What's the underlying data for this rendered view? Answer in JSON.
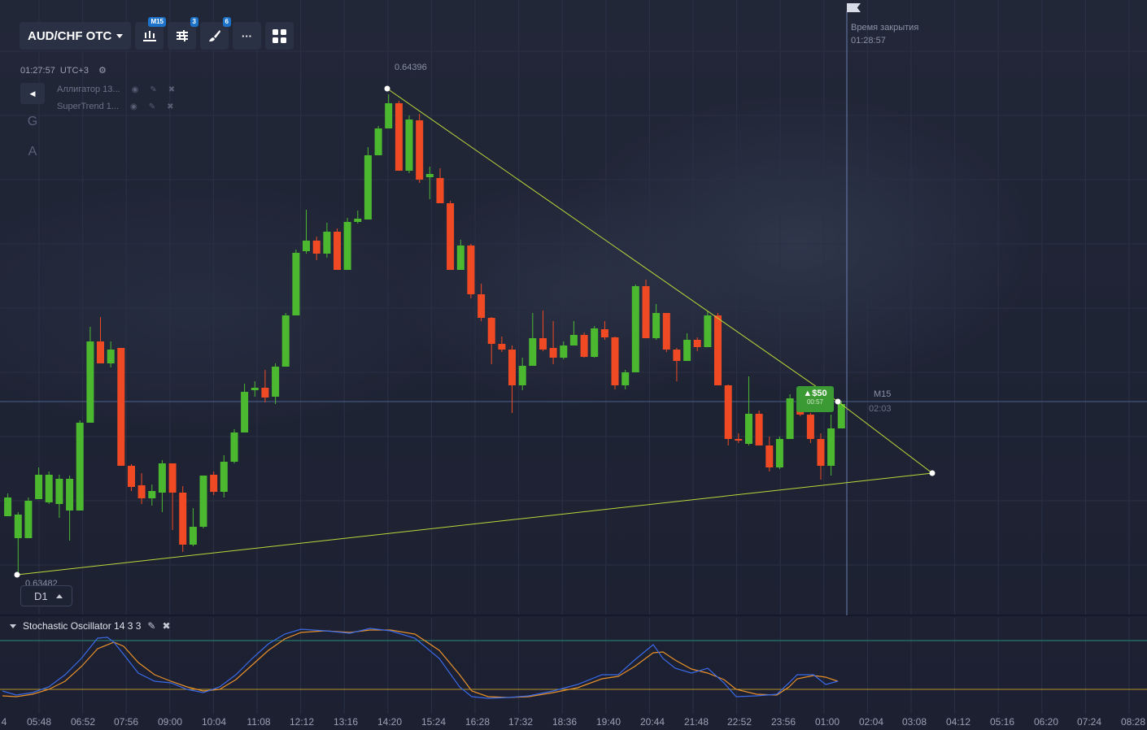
{
  "toolbar": {
    "pair_label": "AUD/CHF OTC",
    "timeframe_badge": "M15",
    "settings_badge": "3",
    "drawing_badge": "6",
    "more_label": "···"
  },
  "clock": {
    "time": "01:27:57",
    "timezone": "UTC+3"
  },
  "indicators": [
    {
      "label": "Аллигатор 13..."
    },
    {
      "label": "SuperTrend 1..."
    }
  ],
  "side_tools": {
    "g_label": "G",
    "a_label": "A"
  },
  "price_labels": {
    "high": "0.64396",
    "low": "0.63482"
  },
  "timeframe_button": {
    "label": "D1"
  },
  "expiry": {
    "title": "Время закрытия",
    "time": "01:28:57"
  },
  "current_marker": {
    "timeframe": "M15",
    "countdown": "02:03"
  },
  "trade": {
    "amount": "▲$50",
    "timer": "00:57"
  },
  "stochastic": {
    "label": "Stochastic Oscillator 14 3 3"
  },
  "x_axis": [
    "4",
    "05:48",
    "06:52",
    "07:56",
    "09:00",
    "10:04",
    "11:08",
    "12:12",
    "13:16",
    "14:20",
    "15:24",
    "16:28",
    "17:32",
    "18:36",
    "19:40",
    "20:44",
    "21:48",
    "22:52",
    "23:56",
    "01:00",
    "02:04",
    "03:08",
    "04:12",
    "05:16",
    "06:20",
    "07:24",
    "08:28"
  ],
  "colors": {
    "bull": "#4cb830",
    "bear": "#f04a24",
    "trendline": "#b9d93a",
    "stoch_k": "#3a6ae8",
    "stoch_d": "#e8902a"
  },
  "chart_data": {
    "type": "candlestick",
    "candles": [
      [
        9.6,
        635,
        612,
        635,
        607
      ],
      [
        22.3,
        662,
        633,
        706,
        630
      ],
      [
        34.9,
        662,
        616,
        662,
        612
      ],
      [
        47.6,
        614,
        584,
        614,
        575
      ],
      [
        60.2,
        618,
        584,
        620,
        580
      ],
      [
        72.9,
        620,
        589,
        637,
        584
      ],
      [
        85.6,
        628,
        589,
        665,
        585
      ],
      [
        98.2,
        628,
        520,
        628,
        517
      ],
      [
        110.9,
        520,
        420,
        520,
        402
      ],
      [
        123.5,
        420,
        447,
        447,
        390
      ],
      [
        136.2,
        447,
        430,
        452,
        420
      ],
      [
        148.8,
        428,
        573,
        573,
        428
      ],
      [
        161.5,
        573,
        599,
        604,
        571
      ],
      [
        174.1,
        597,
        613,
        620,
        582
      ],
      [
        186.8,
        613,
        604,
        622,
        596
      ],
      [
        199.4,
        606,
        570,
        630,
        566
      ],
      [
        212.1,
        570,
        606,
        652,
        570
      ],
      [
        224.7,
        606,
        670,
        679,
        598
      ],
      [
        237.4,
        670,
        648,
        672,
        625
      ],
      [
        250.0,
        648,
        585,
        650,
        585
      ],
      [
        262.7,
        584,
        605,
        609,
        580
      ],
      [
        275.3,
        605,
        568,
        612,
        560
      ],
      [
        288.0,
        568,
        532,
        570,
        528
      ],
      [
        300.6,
        532,
        482,
        532,
        472
      ],
      [
        313.3,
        480,
        477,
        488,
        469
      ],
      [
        325.9,
        477,
        489,
        495,
        455
      ],
      [
        338.6,
        488,
        451,
        497,
        447
      ],
      [
        351.2,
        451,
        388,
        451,
        385
      ],
      [
        363.9,
        388,
        311,
        388,
        307
      ],
      [
        376.5,
        309,
        296,
        312,
        258
      ],
      [
        389.2,
        296,
        312,
        320,
        291
      ],
      [
        401.9,
        312,
        285,
        317,
        274
      ],
      [
        414.5,
        285,
        332,
        332,
        281
      ],
      [
        427.1,
        332,
        273,
        332,
        268
      ],
      [
        439.8,
        273,
        269,
        275,
        259
      ],
      [
        452.4,
        270,
        191,
        270,
        181
      ],
      [
        465.1,
        191,
        158,
        191,
        155
      ],
      [
        477.7,
        158,
        127,
        158,
        116
      ],
      [
        490.4,
        127,
        210,
        210,
        124
      ],
      [
        503.0,
        210,
        147,
        213,
        142
      ],
      [
        515.7,
        148,
        221,
        225,
        140
      ],
      [
        528.3,
        218,
        214,
        245,
        205
      ],
      [
        541.0,
        219,
        250,
        250,
        207
      ],
      [
        553.6,
        250,
        332,
        332,
        247
      ],
      [
        566.3,
        332,
        302,
        332,
        295
      ],
      [
        578.9,
        302,
        362,
        367,
        300
      ],
      [
        591.6,
        362,
        391,
        395,
        349
      ],
      [
        604.2,
        391,
        423,
        448,
        390
      ],
      [
        616.9,
        423,
        430,
        433,
        414
      ],
      [
        629.5,
        430,
        474,
        508,
        425
      ],
      [
        642.2,
        474,
        450,
        480,
        440
      ],
      [
        654.8,
        450,
        416,
        450,
        385
      ],
      [
        667.5,
        416,
        430,
        432,
        382
      ],
      [
        680.1,
        428,
        440,
        448,
        395
      ],
      [
        692.8,
        440,
        425,
        442,
        420
      ],
      [
        705.4,
        425,
        412,
        425,
        395
      ],
      [
        718.1,
        412,
        439,
        440,
        409
      ],
      [
        730.7,
        439,
        404,
        440,
        401
      ],
      [
        743.4,
        405,
        415,
        418,
        395
      ],
      [
        756.0,
        415,
        474,
        479,
        414
      ],
      [
        768.7,
        474,
        458,
        479,
        455
      ],
      [
        781.3,
        458,
        352,
        458,
        350
      ],
      [
        794.0,
        352,
        416,
        416,
        344
      ],
      [
        806.6,
        416,
        385,
        418,
        374
      ],
      [
        819.3,
        385,
        430,
        433,
        385
      ],
      [
        831.9,
        430,
        444,
        469,
        428
      ],
      [
        844.6,
        444,
        418,
        444,
        410
      ],
      [
        857.2,
        418,
        427,
        432,
        415
      ],
      [
        869.9,
        427,
        388,
        427,
        383
      ],
      [
        882.5,
        388,
        474,
        474,
        385
      ],
      [
        895.2,
        474,
        540,
        548,
        473
      ],
      [
        907.8,
        540,
        541,
        545,
        533
      ],
      [
        920.5,
        546,
        509,
        548,
        463
      ],
      [
        933.1,
        509,
        548,
        548,
        505
      ],
      [
        945.8,
        548,
        575,
        580,
        537
      ],
      [
        958.4,
        575,
        540,
        577,
        537
      ],
      [
        971.1,
        540,
        490,
        540,
        485
      ],
      [
        983.7,
        490,
        510,
        512,
        477
      ],
      [
        996.4,
        510,
        540,
        545,
        508
      ],
      [
        1009.0,
        540,
        573,
        590,
        533
      ],
      [
        1021.6,
        573,
        527,
        585,
        510
      ],
      [
        1034.3,
        527,
        497,
        527,
        493
      ]
    ],
    "trendlines": [
      {
        "from": [
          476,
          109
        ],
        "to": [
          1030,
          494
        ]
      },
      {
        "from": [
          21,
          707
        ],
        "to": [
          1146,
          582
        ]
      },
      {
        "from": [
          1030,
          494
        ],
        "to": [
          1146,
          582
        ]
      }
    ],
    "stochastic": {
      "k": [
        [
          3,
          850
        ],
        [
          20,
          855
        ],
        [
          40,
          852
        ],
        [
          60,
          845
        ],
        [
          80,
          830
        ],
        [
          100,
          810
        ],
        [
          120,
          785
        ],
        [
          132,
          784
        ],
        [
          140,
          790
        ],
        [
          152,
          805
        ],
        [
          170,
          828
        ],
        [
          190,
          838
        ],
        [
          210,
          840
        ],
        [
          230,
          848
        ],
        [
          250,
          852
        ],
        [
          270,
          845
        ],
        [
          290,
          830
        ],
        [
          310,
          810
        ],
        [
          330,
          792
        ],
        [
          350,
          780
        ],
        [
          370,
          774
        ],
        [
          400,
          776
        ],
        [
          430,
          779
        ],
        [
          455,
          773
        ],
        [
          480,
          776
        ],
        [
          510,
          785
        ],
        [
          540,
          810
        ],
        [
          565,
          845
        ],
        [
          580,
          857
        ],
        [
          600,
          859
        ],
        [
          625,
          858
        ],
        [
          650,
          856
        ],
        [
          680,
          850
        ],
        [
          710,
          842
        ],
        [
          740,
          830
        ],
        [
          760,
          830
        ],
        [
          780,
          812
        ],
        [
          803,
          793
        ],
        [
          815,
          810
        ],
        [
          830,
          822
        ],
        [
          850,
          828
        ],
        [
          870,
          822
        ],
        [
          890,
          840
        ],
        [
          905,
          857
        ],
        [
          930,
          856
        ],
        [
          955,
          854
        ],
        [
          970,
          840
        ],
        [
          980,
          830
        ],
        [
          1000,
          830
        ],
        [
          1015,
          842
        ],
        [
          1030,
          838
        ]
      ],
      "d": [
        [
          3,
          856
        ],
        [
          20,
          857
        ],
        [
          40,
          854
        ],
        [
          60,
          848
        ],
        [
          80,
          838
        ],
        [
          100,
          820
        ],
        [
          120,
          798
        ],
        [
          140,
          790
        ],
        [
          152,
          795
        ],
        [
          170,
          815
        ],
        [
          190,
          830
        ],
        [
          210,
          838
        ],
        [
          230,
          845
        ],
        [
          250,
          850
        ],
        [
          270,
          848
        ],
        [
          290,
          836
        ],
        [
          310,
          818
        ],
        [
          330,
          800
        ],
        [
          350,
          786
        ],
        [
          370,
          778
        ],
        [
          400,
          776
        ],
        [
          430,
          778
        ],
        [
          455,
          775
        ],
        [
          480,
          775
        ],
        [
          510,
          780
        ],
        [
          540,
          800
        ],
        [
          565,
          830
        ],
        [
          580,
          850
        ],
        [
          600,
          857
        ],
        [
          625,
          858
        ],
        [
          650,
          857
        ],
        [
          680,
          852
        ],
        [
          710,
          846
        ],
        [
          740,
          835
        ],
        [
          760,
          832
        ],
        [
          780,
          820
        ],
        [
          803,
          803
        ],
        [
          815,
          802
        ],
        [
          830,
          812
        ],
        [
          850,
          823
        ],
        [
          870,
          828
        ],
        [
          890,
          836
        ],
        [
          905,
          848
        ],
        [
          930,
          854
        ],
        [
          955,
          855
        ],
        [
          970,
          845
        ],
        [
          980,
          835
        ],
        [
          1000,
          831
        ],
        [
          1015,
          833
        ],
        [
          1030,
          838
        ]
      ]
    }
  }
}
